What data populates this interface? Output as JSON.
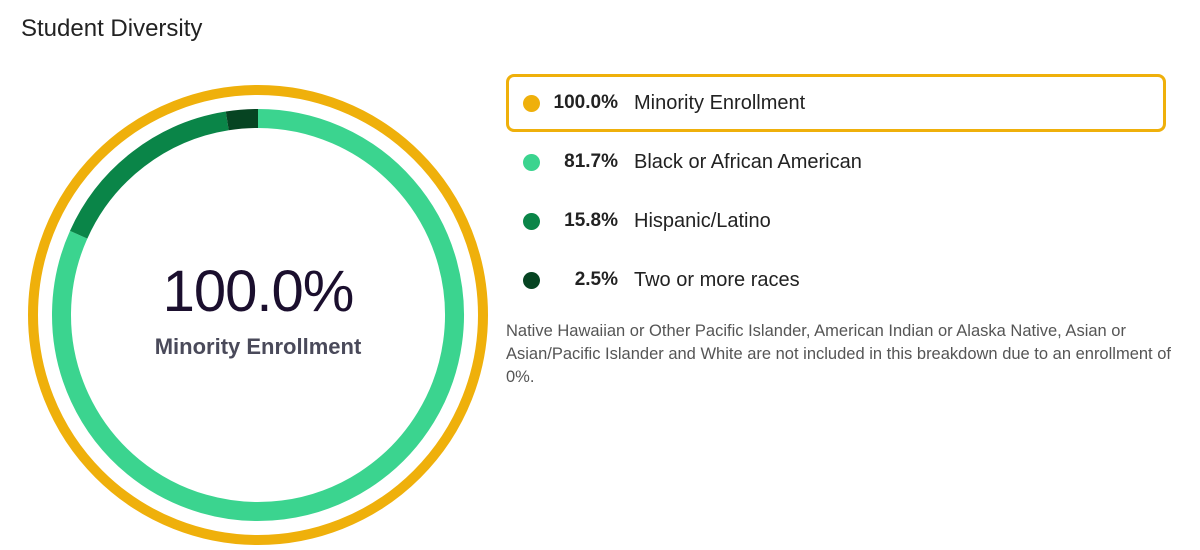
{
  "title": "Student Diversity",
  "colors": {
    "accent": "#efb00b",
    "black_african_american": "#3bd48f",
    "hispanic_latino": "#0a8548",
    "two_or_more": "#064422"
  },
  "chart_data": {
    "type": "pie",
    "variant": "donut",
    "title": "Student Diversity",
    "outer_ring": {
      "label": "Minority Enrollment",
      "value": 100.0,
      "color": "#efb00b"
    },
    "center": {
      "value": "100.0%",
      "label": "Minority Enrollment"
    },
    "slices": [
      {
        "label": "Black or African American",
        "value": 81.7,
        "color": "#3bd48f"
      },
      {
        "label": "Hispanic/Latino",
        "value": 15.8,
        "color": "#0a8548"
      },
      {
        "label": "Two or more races",
        "value": 2.5,
        "color": "#064422"
      }
    ]
  },
  "legend": [
    {
      "value": "100.0%",
      "label": "Minority Enrollment",
      "color": "#efb00b",
      "active": true
    },
    {
      "value": "81.7%",
      "label": "Black or African American",
      "color": "#3bd48f",
      "active": false
    },
    {
      "value": "15.8%",
      "label": "Hispanic/Latino",
      "color": "#0a8548",
      "active": false
    },
    {
      "value": "2.5%",
      "label": "Two or more races",
      "color": "#064422",
      "active": false
    }
  ],
  "footnote": "Native Hawaiian or Other Pacific Islander, American Indian or Alaska Native, Asian or Asian/Pacific Islander and White are not included in this breakdown due to an enrollment of 0%."
}
